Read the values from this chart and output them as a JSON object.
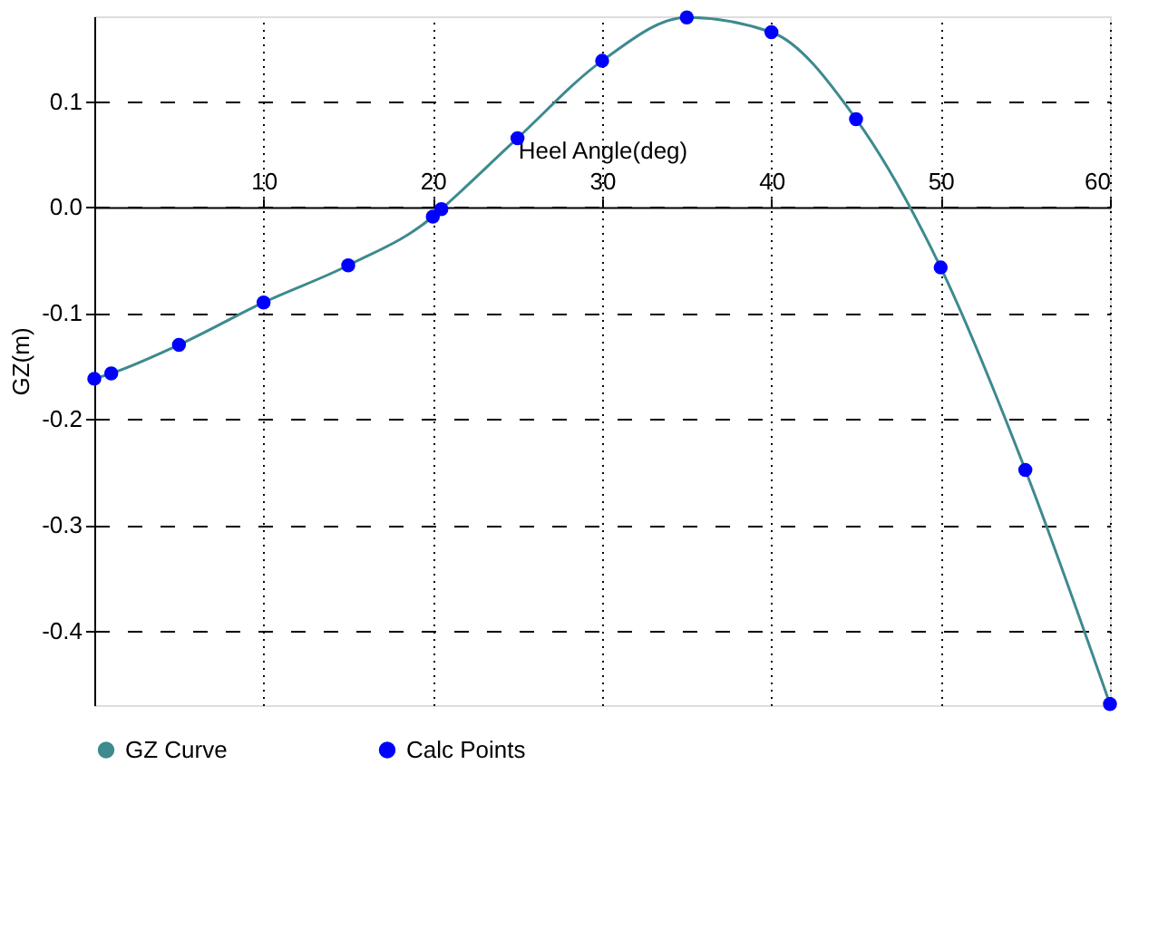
{
  "chart_data": {
    "type": "line",
    "xlabel": "Heel Angle(deg)",
    "ylabel": "GZ(m)",
    "x": [
      0,
      1,
      5,
      10,
      15,
      20,
      20.5,
      25,
      30,
      35,
      40,
      45,
      50,
      55,
      60
    ],
    "series": [
      {
        "name": "GZ Curve",
        "color": "#3d8a8f",
        "values": [
          -0.162,
          -0.157,
          -0.13,
          -0.09,
          -0.055,
          -0.009,
          -0.002,
          0.065,
          0.138,
          0.179,
          0.165,
          0.083,
          -0.057,
          -0.248,
          -0.469
        ]
      },
      {
        "name": "Calc Points",
        "type": "scatter",
        "color": "#0000ff",
        "marker": "circle",
        "values": [
          -0.162,
          -0.157,
          -0.13,
          -0.09,
          -0.055,
          -0.009,
          -0.002,
          0.065,
          0.138,
          0.179,
          0.165,
          0.083,
          -0.057,
          -0.248,
          -0.469
        ]
      }
    ],
    "xlim": [
      0,
      60
    ],
    "xticks": [
      10,
      20,
      30,
      40,
      50,
      60
    ],
    "ylim": [
      -0.47,
      0.18
    ],
    "yticks": [
      -0.4,
      -0.3,
      -0.2,
      -0.1,
      {
        "value": 0,
        "label": "0.0"
      },
      0.1
    ],
    "grid": true,
    "legend": "bottom"
  }
}
